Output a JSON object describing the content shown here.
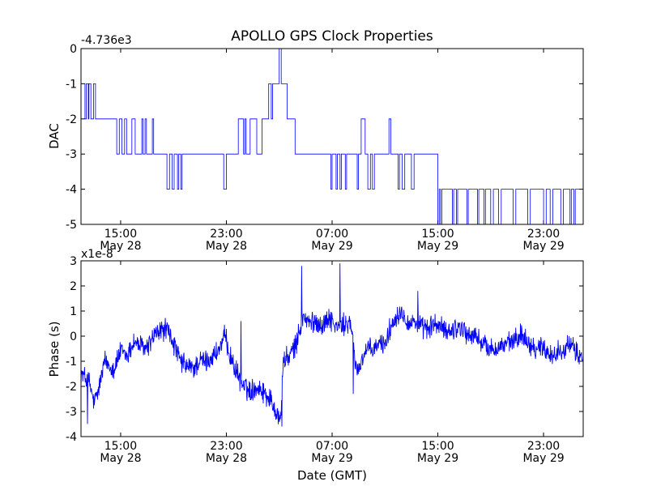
{
  "figure_title": "APOLLO GPS Clock Properties",
  "colors": {
    "line": "#0000ff",
    "axes": "#000000",
    "background": "#ffffff"
  },
  "chart_data": [
    {
      "type": "line",
      "title": "APOLLO GPS Clock Properties",
      "ylabel": "DAC",
      "xlabel": "",
      "offset_text": "-4.736e3",
      "x_unit": "hours since 2017-05-28 10:00 GMT (approx.)",
      "xlim": [
        0,
        38
      ],
      "ylim": [
        -5,
        0
      ],
      "yticks": [
        0,
        -1,
        -2,
        -3,
        -4,
        -5
      ],
      "ytick_labels": [
        "0",
        "-1",
        "-2",
        "-3",
        "-4",
        "-5"
      ],
      "xticks": [
        3,
        11,
        19,
        27,
        35
      ],
      "xtick_labels": [
        [
          "15:00",
          "May 28"
        ],
        [
          "23:00",
          "May 28"
        ],
        [
          "07:00",
          "May 29"
        ],
        [
          "15:00",
          "May 29"
        ],
        [
          "23:00",
          "May 29"
        ]
      ],
      "series": [
        {
          "name": "DAC",
          "style": "step",
          "points": [
            [
              0.0,
              -1
            ],
            [
              0.3,
              -2
            ],
            [
              0.4,
              -1
            ],
            [
              0.55,
              -2
            ],
            [
              0.6,
              -1
            ],
            [
              0.75,
              -2
            ],
            [
              0.95,
              -1
            ],
            [
              1.1,
              -2
            ],
            [
              2.7,
              -3
            ],
            [
              2.9,
              -2
            ],
            [
              3.1,
              -3
            ],
            [
              3.3,
              -2
            ],
            [
              3.45,
              -3
            ],
            [
              3.85,
              -2
            ],
            [
              4.1,
              -3
            ],
            [
              4.6,
              -2
            ],
            [
              4.7,
              -3
            ],
            [
              4.85,
              -2
            ],
            [
              4.95,
              -3
            ],
            [
              5.4,
              -2
            ],
            [
              5.5,
              -3
            ],
            [
              6.5,
              -4
            ],
            [
              6.7,
              -3
            ],
            [
              6.9,
              -4
            ],
            [
              7.05,
              -3
            ],
            [
              7.3,
              -4
            ],
            [
              7.4,
              -3
            ],
            [
              7.55,
              -4
            ],
            [
              7.65,
              -3
            ],
            [
              10.8,
              -4
            ],
            [
              11.0,
              -3
            ],
            [
              11.9,
              -2
            ],
            [
              12.3,
              -3
            ],
            [
              12.4,
              -2
            ],
            [
              12.5,
              -3
            ],
            [
              12.8,
              -2
            ],
            [
              13.3,
              -3
            ],
            [
              13.7,
              -2
            ],
            [
              14.2,
              -1
            ],
            [
              14.4,
              -2
            ],
            [
              14.5,
              -1
            ],
            [
              15.0,
              0
            ],
            [
              15.15,
              -1
            ],
            [
              15.6,
              -2
            ],
            [
              16.2,
              -3
            ],
            [
              18.9,
              -4
            ],
            [
              19.0,
              -3
            ],
            [
              19.3,
              -4
            ],
            [
              19.4,
              -3
            ],
            [
              19.6,
              -4
            ],
            [
              19.7,
              -3
            ],
            [
              20.0,
              -4
            ],
            [
              20.1,
              -3
            ],
            [
              20.9,
              -4
            ],
            [
              21.0,
              -3
            ],
            [
              21.2,
              -2
            ],
            [
              21.5,
              -3
            ],
            [
              21.7,
              -4
            ],
            [
              21.9,
              -3
            ],
            [
              22.05,
              -4
            ],
            [
              22.2,
              -3
            ],
            [
              23.3,
              -2
            ],
            [
              23.45,
              -3
            ],
            [
              24.0,
              -4
            ],
            [
              24.1,
              -3
            ],
            [
              24.3,
              -4
            ],
            [
              24.5,
              -3
            ],
            [
              25.0,
              -4
            ],
            [
              25.2,
              -3
            ],
            [
              27.0,
              -5
            ],
            [
              27.1,
              -4
            ],
            [
              27.2,
              -5
            ],
            [
              27.3,
              -4
            ],
            [
              28.1,
              -5
            ],
            [
              28.2,
              -4
            ],
            [
              28.4,
              -5
            ],
            [
              28.5,
              -4
            ],
            [
              29.2,
              -5
            ],
            [
              29.3,
              -4
            ],
            [
              30.0,
              -5
            ],
            [
              30.1,
              -4
            ],
            [
              30.5,
              -5
            ],
            [
              30.6,
              -4
            ],
            [
              31.0,
              -5
            ],
            [
              31.2,
              -4
            ],
            [
              31.6,
              -5
            ],
            [
              31.8,
              -4
            ],
            [
              32.7,
              -5
            ],
            [
              32.9,
              -4
            ],
            [
              33.8,
              -5
            ],
            [
              34.0,
              -4
            ],
            [
              35.0,
              -5
            ],
            [
              35.2,
              -4
            ],
            [
              35.5,
              -5
            ],
            [
              35.7,
              -4
            ],
            [
              36.3,
              -5
            ],
            [
              36.5,
              -4
            ],
            [
              37.0,
              -5
            ],
            [
              37.1,
              -4
            ],
            [
              37.3,
              -5
            ],
            [
              37.4,
              -4
            ],
            [
              37.7,
              -4
            ]
          ]
        }
      ]
    },
    {
      "type": "line",
      "title": "",
      "ylabel": "Phase (s)",
      "xlabel": "Date (GMT)",
      "offset_text": "x1e-8",
      "x_unit": "hours since 2017-05-28 10:00 GMT (approx.)",
      "xlim": [
        0,
        38
      ],
      "ylim": [
        -4,
        3
      ],
      "yticks": [
        3,
        2,
        1,
        0,
        -1,
        -2,
        -3,
        -4
      ],
      "ytick_labels": [
        "3",
        "2",
        "1",
        "0",
        "-1",
        "-2",
        "-3",
        "-4"
      ],
      "xticks": [
        3,
        11,
        19,
        27,
        35
      ],
      "xtick_labels": [
        [
          "15:00",
          "May 28"
        ],
        [
          "23:00",
          "May 28"
        ],
        [
          "07:00",
          "May 29"
        ],
        [
          "15:00",
          "May 29"
        ],
        [
          "23:00",
          "May 29"
        ]
      ],
      "series": [
        {
          "name": "Phase",
          "style": "noisy",
          "noise": 0.35,
          "points": [
            [
              0.0,
              -1.5
            ],
            [
              0.6,
              -1.8
            ],
            [
              1.0,
              -2.7
            ],
            [
              1.3,
              -2.2
            ],
            [
              1.8,
              -1.0
            ],
            [
              2.5,
              -1.3
            ],
            [
              3.0,
              -0.6
            ],
            [
              3.5,
              -0.8
            ],
            [
              4.0,
              -0.2
            ],
            [
              4.5,
              -0.4
            ],
            [
              5.0,
              -0.5
            ],
            [
              5.5,
              0.0
            ],
            [
              6.0,
              0.2
            ],
            [
              6.5,
              0.3
            ],
            [
              7.0,
              -0.3
            ],
            [
              7.5,
              -1.0
            ],
            [
              8.0,
              -1.2
            ],
            [
              8.5,
              -1.3
            ],
            [
              9.0,
              -1.0
            ],
            [
              9.5,
              -1.0
            ],
            [
              10.0,
              -0.8
            ],
            [
              10.5,
              -0.5
            ],
            [
              10.9,
              0.0
            ],
            [
              11.3,
              -0.8
            ],
            [
              11.8,
              -1.5
            ],
            [
              12.3,
              -2.0
            ],
            [
              12.8,
              -2.2
            ],
            [
              13.3,
              -2.0
            ],
            [
              13.8,
              -2.2
            ],
            [
              14.3,
              -2.5
            ],
            [
              14.8,
              -3.0
            ],
            [
              15.1,
              -3.4
            ],
            [
              15.3,
              -1.0
            ],
            [
              15.8,
              -0.8
            ],
            [
              16.3,
              -0.3
            ],
            [
              16.8,
              0.8
            ],
            [
              17.3,
              0.5
            ],
            [
              17.8,
              0.6
            ],
            [
              18.3,
              0.4
            ],
            [
              18.8,
              0.8
            ],
            [
              19.2,
              0.4
            ],
            [
              19.6,
              0.3
            ],
            [
              20.0,
              0.5
            ],
            [
              20.4,
              0.5
            ],
            [
              20.6,
              -0.3
            ],
            [
              20.9,
              -1.5
            ],
            [
              21.2,
              -1.0
            ],
            [
              21.6,
              -0.5
            ],
            [
              22.0,
              -0.6
            ],
            [
              22.6,
              -0.3
            ],
            [
              23.0,
              -0.3
            ],
            [
              23.4,
              0.3
            ],
            [
              23.8,
              0.8
            ],
            [
              24.3,
              1.0
            ],
            [
              24.8,
              0.5
            ],
            [
              25.3,
              0.6
            ],
            [
              25.8,
              0.3
            ],
            [
              26.3,
              0.3
            ],
            [
              26.8,
              0.5
            ],
            [
              27.3,
              0.3
            ],
            [
              27.8,
              0.2
            ],
            [
              28.3,
              0.3
            ],
            [
              28.8,
              0.4
            ],
            [
              29.3,
              0.0
            ],
            [
              29.8,
              0.0
            ],
            [
              30.3,
              -0.2
            ],
            [
              30.8,
              -0.5
            ],
            [
              31.3,
              -0.5
            ],
            [
              31.8,
              -0.4
            ],
            [
              32.3,
              -0.3
            ],
            [
              32.8,
              -0.2
            ],
            [
              33.3,
              0.1
            ],
            [
              33.8,
              -0.2
            ],
            [
              34.3,
              -0.5
            ],
            [
              34.8,
              -0.4
            ],
            [
              35.3,
              -0.6
            ],
            [
              35.8,
              -0.8
            ],
            [
              36.3,
              -0.5
            ],
            [
              36.8,
              -0.4
            ],
            [
              37.3,
              -0.5
            ],
            [
              37.7,
              -0.8
            ]
          ],
          "spikes": [
            [
              0.5,
              -3.5
            ],
            [
              12.1,
              0.6
            ],
            [
              15.2,
              -3.6
            ],
            [
              16.7,
              2.8
            ],
            [
              19.6,
              2.9
            ],
            [
              20.6,
              -2.3
            ],
            [
              25.5,
              1.8
            ]
          ]
        }
      ]
    }
  ]
}
